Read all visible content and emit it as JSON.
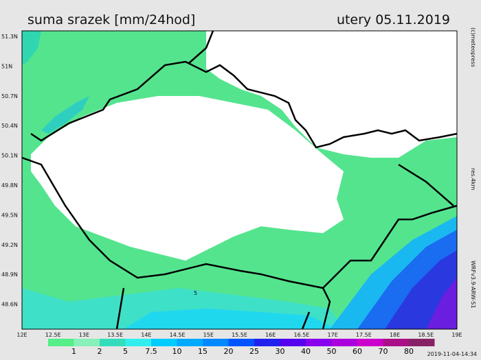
{
  "header": {
    "title": "suma srazek [mm/24hod]",
    "date": "utery 05.11.2019"
  },
  "map": {
    "lat_labels": [
      "51.3N",
      "51N",
      "50.7N",
      "50.4N",
      "50.1N",
      "49.8N",
      "49.5N",
      "49.2N",
      "48.9N",
      "48.6N"
    ],
    "lon_labels": [
      "12E",
      "12.5E",
      "13E",
      "13.5E",
      "14E",
      "14.5E",
      "15E",
      "15.5E",
      "16E",
      "16.5E",
      "17E",
      "17.5E",
      "18E",
      "18.5E",
      "19E"
    ],
    "contour_label": "5"
  },
  "legend": {
    "labels": [
      "1",
      "2",
      "5",
      "7.5",
      "10",
      "15",
      "20",
      "25",
      "30",
      "40",
      "50",
      "60",
      "70",
      "80"
    ]
  },
  "side": {
    "copyright": "(c)meteopress",
    "resolution": "res.4km",
    "model": "WRFv3.9-ARW-S1",
    "timestamp": "2019-11-04-14:34"
  }
}
